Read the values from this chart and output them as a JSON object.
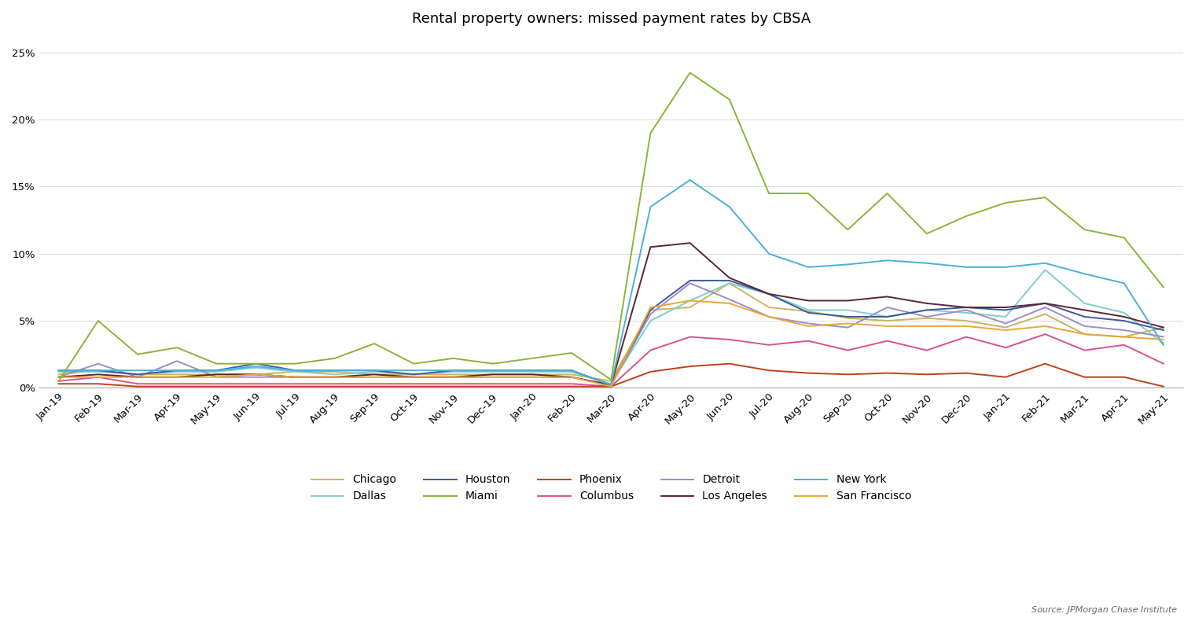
{
  "title": "Rental property owners: missed payment rates by CBSA",
  "source": "Source: JPMorgan Chase Institute",
  "ylim": [
    0,
    0.26
  ],
  "yticks": [
    0,
    0.05,
    0.1,
    0.15,
    0.2,
    0.25
  ],
  "dates": [
    "Jan-19",
    "Feb-19",
    "Mar-19",
    "Apr-19",
    "May-19",
    "Jun-19",
    "Jul-19",
    "Aug-19",
    "Sep-19",
    "Oct-19",
    "Nov-19",
    "Dec-19",
    "Jan-20",
    "Feb-20",
    "Mar-20",
    "Apr-20",
    "May-20",
    "Jun-20",
    "Jul-20",
    "Aug-20",
    "Sep-20",
    "Oct-20",
    "Nov-20",
    "Dec-20",
    "Jan-21",
    "Feb-21",
    "Mar-21",
    "Apr-21",
    "May-21"
  ],
  "series": {
    "Chicago": {
      "color": "#C8B560",
      "data": [
        0.01,
        0.013,
        0.01,
        0.01,
        0.01,
        0.01,
        0.012,
        0.012,
        0.01,
        0.01,
        0.01,
        0.01,
        0.01,
        0.01,
        0.005,
        0.058,
        0.06,
        0.078,
        0.06,
        0.057,
        0.052,
        0.05,
        0.052,
        0.05,
        0.045,
        0.055,
        0.04,
        0.038,
        0.045
      ]
    },
    "Columbus": {
      "color": "#D9538A",
      "data": [
        0.005,
        0.008,
        0.003,
        0.003,
        0.003,
        0.003,
        0.003,
        0.003,
        0.003,
        0.003,
        0.003,
        0.003,
        0.003,
        0.003,
        0.001,
        0.028,
        0.038,
        0.036,
        0.032,
        0.035,
        0.028,
        0.035,
        0.028,
        0.038,
        0.03,
        0.04,
        0.028,
        0.032,
        0.018
      ]
    },
    "Dallas": {
      "color": "#7ECECA",
      "data": [
        0.012,
        0.012,
        0.01,
        0.012,
        0.012,
        0.015,
        0.012,
        0.01,
        0.012,
        0.01,
        0.012,
        0.012,
        0.012,
        0.012,
        0.003,
        0.05,
        0.065,
        0.078,
        0.07,
        0.058,
        0.058,
        0.053,
        0.058,
        0.056,
        0.053,
        0.088,
        0.063,
        0.056,
        0.033
      ]
    },
    "Detroit": {
      "color": "#9B8DC8",
      "data": [
        0.008,
        0.018,
        0.008,
        0.02,
        0.008,
        0.008,
        0.008,
        0.008,
        0.008,
        0.008,
        0.008,
        0.008,
        0.008,
        0.008,
        0.002,
        0.055,
        0.078,
        0.066,
        0.053,
        0.048,
        0.045,
        0.06,
        0.053,
        0.058,
        0.048,
        0.06,
        0.046,
        0.043,
        0.038
      ]
    },
    "Houston": {
      "color": "#3A5A9B",
      "data": [
        0.013,
        0.013,
        0.01,
        0.013,
        0.013,
        0.018,
        0.013,
        0.013,
        0.013,
        0.01,
        0.013,
        0.013,
        0.013,
        0.013,
        0.002,
        0.058,
        0.08,
        0.08,
        0.07,
        0.056,
        0.053,
        0.053,
        0.058,
        0.06,
        0.058,
        0.063,
        0.053,
        0.05,
        0.043
      ]
    },
    "Los Angeles": {
      "color": "#5B2333",
      "data": [
        0.008,
        0.01,
        0.008,
        0.008,
        0.01,
        0.01,
        0.008,
        0.008,
        0.01,
        0.008,
        0.008,
        0.01,
        0.01,
        0.008,
        0.002,
        0.105,
        0.108,
        0.082,
        0.07,
        0.065,
        0.065,
        0.068,
        0.063,
        0.06,
        0.06,
        0.063,
        0.058,
        0.053,
        0.045
      ]
    },
    "Miami": {
      "color": "#8DB33A",
      "data": [
        0.005,
        0.05,
        0.025,
        0.03,
        0.018,
        0.018,
        0.018,
        0.022,
        0.033,
        0.018,
        0.022,
        0.018,
        0.022,
        0.026,
        0.006,
        0.19,
        0.235,
        0.215,
        0.145,
        0.145,
        0.118,
        0.145,
        0.115,
        0.128,
        0.138,
        0.142,
        0.118,
        0.112,
        0.075
      ]
    },
    "New York": {
      "color": "#4BAFD6",
      "data": [
        0.013,
        0.013,
        0.013,
        0.013,
        0.013,
        0.016,
        0.013,
        0.013,
        0.013,
        0.013,
        0.013,
        0.013,
        0.013,
        0.013,
        0.002,
        0.135,
        0.155,
        0.135,
        0.1,
        0.09,
        0.092,
        0.095,
        0.093,
        0.09,
        0.09,
        0.093,
        0.085,
        0.078,
        0.032
      ]
    },
    "Phoenix": {
      "color": "#C0401A",
      "data": [
        0.003,
        0.003,
        0.001,
        0.001,
        0.001,
        0.001,
        0.001,
        0.001,
        0.001,
        0.001,
        0.001,
        0.001,
        0.001,
        0.001,
        0.001,
        0.012,
        0.016,
        0.018,
        0.013,
        0.011,
        0.01,
        0.011,
        0.01,
        0.011,
        0.008,
        0.018,
        0.008,
        0.008,
        0.001
      ]
    },
    "San Francisco": {
      "color": "#E8A838",
      "data": [
        0.008,
        0.008,
        0.008,
        0.008,
        0.008,
        0.01,
        0.008,
        0.008,
        0.008,
        0.008,
        0.008,
        0.008,
        0.008,
        0.008,
        0.001,
        0.06,
        0.065,
        0.063,
        0.053,
        0.046,
        0.048,
        0.046,
        0.046,
        0.046,
        0.043,
        0.046,
        0.04,
        0.038,
        0.036
      ]
    }
  },
  "legend_row1": [
    "Chicago",
    "Dallas",
    "Houston",
    "Miami",
    "Phoenix"
  ],
  "legend_row2": [
    "Columbus",
    "Detroit",
    "Los Angeles",
    "New York",
    "San Francisco"
  ],
  "background_color": "#FFFFFF",
  "title_fontsize": 13,
  "legend_fontsize": 10,
  "tick_fontsize": 9.5,
  "source_fontsize": 8
}
